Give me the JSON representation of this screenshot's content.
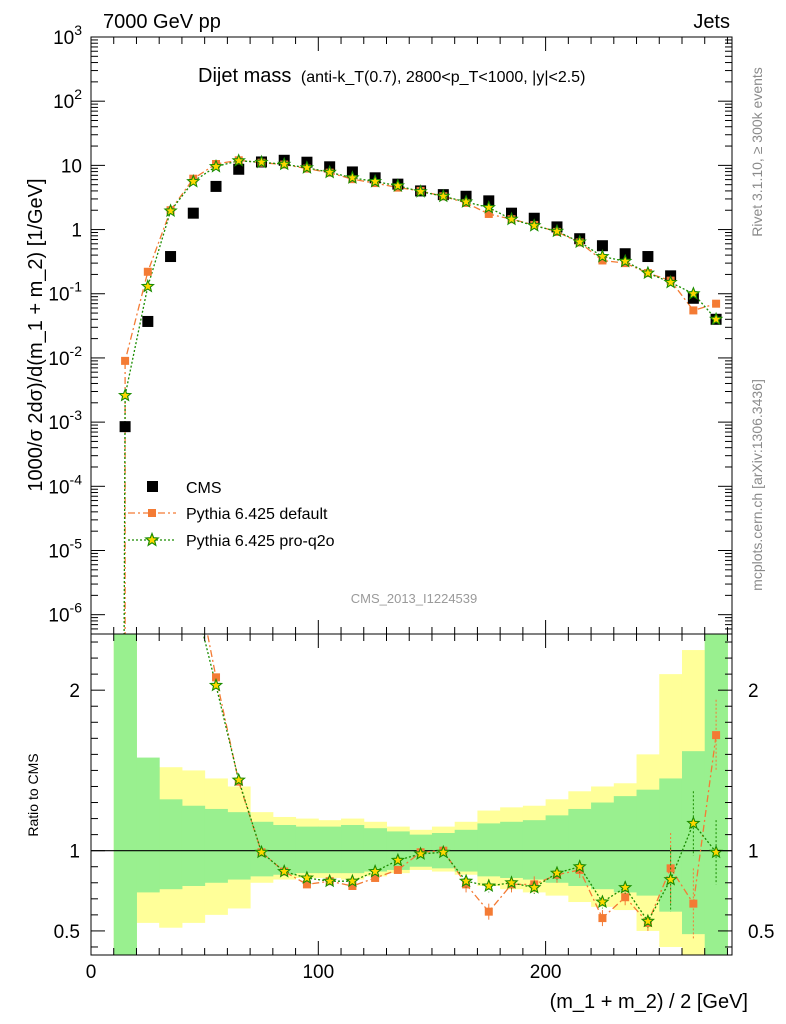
{
  "header": {
    "left_label": "7000 GeV pp",
    "right_label": "Jets"
  },
  "side_labels": {
    "rivet": "Rivet 3.1.10, ≥ 300k events",
    "mcplots": "mcplots.cern.ch [arXiv:1306.3436]"
  },
  "chart_data": {
    "type": "scatter",
    "title_main": "Dijet mass",
    "title_detail": "(anti-k_T(0.7), 2800<p_T<1000, |y|<2.5)",
    "xlabel": "(m_1 + m_2) / 2 [GeV]",
    "ylabel": "1000/σ 2dσ)/d(m_1 + m_2) [1/GeV]",
    "ratio_ylabel": "Ratio to CMS",
    "analysis_tag": "CMS_2013_I1224539",
    "x_range": [
      0,
      282
    ],
    "y_range_log": [
      5e-07,
      1000
    ],
    "ratio_range": [
      0.35,
      2.35
    ],
    "x_ticks": [
      "0",
      "100",
      "200"
    ],
    "y_ticks": [
      "10^-6",
      "10^-5",
      "10^-4",
      "10^-3",
      "10^-2",
      "10^-1",
      "1",
      "10",
      "10^2",
      "10^3"
    ],
    "ratio_ticks": [
      "0.5",
      "1",
      "2"
    ],
    "legend_position": "bottom-left",
    "colors": {
      "cms": "#000000",
      "default": "#f47b34",
      "proq2o": "#1a8c00",
      "band_inner": "#99f08f",
      "band_outer": "#ffff99"
    },
    "x": [
      15,
      25,
      35,
      45,
      55,
      65,
      75,
      85,
      95,
      105,
      115,
      125,
      135,
      145,
      155,
      165,
      175,
      185,
      195,
      205,
      215,
      225,
      235,
      245,
      255,
      265,
      275
    ],
    "series": [
      {
        "name": "CMS",
        "values": [
          0.00085,
          0.037,
          0.38,
          1.8,
          4.7,
          8.7,
          11.3,
          12.0,
          11.2,
          9.5,
          7.9,
          6.4,
          5.1,
          4.0,
          3.5,
          3.3,
          2.8,
          1.8,
          1.5,
          1.1,
          0.72,
          0.56,
          0.42,
          0.38,
          0.19,
          0.085,
          0.04
        ]
      },
      {
        "name": "Pythia 6.425 default",
        "values": [
          0.009,
          0.22,
          2.0,
          6.2,
          10.5,
          12.0,
          11.0,
          10.3,
          8.9,
          7.7,
          6.1,
          5.3,
          4.5,
          4.0,
          3.3,
          2.6,
          1.75,
          1.45,
          1.18,
          0.92,
          0.63,
          0.33,
          0.3,
          0.21,
          0.16,
          0.055,
          0.07
        ]
      },
      {
        "name": "Pythia 6.425 pro-q2o",
        "values": [
          0.0026,
          0.13,
          1.95,
          5.6,
          9.6,
          11.8,
          11.2,
          10.4,
          9.2,
          7.8,
          6.4,
          5.6,
          4.8,
          3.9,
          3.3,
          2.7,
          2.2,
          1.45,
          1.15,
          0.94,
          0.64,
          0.38,
          0.32,
          0.21,
          0.15,
          0.1,
          0.04
        ]
      }
    ],
    "ratio_series": [
      {
        "name": "Pythia 6.425 default",
        "values": [
          null,
          null,
          null,
          2.8,
          2.08,
          1.43,
          0.99,
          0.87,
          0.79,
          0.81,
          0.78,
          0.83,
          0.88,
          0.99,
          1.0,
          0.79,
          0.62,
          0.79,
          0.79,
          0.85,
          0.88,
          0.58,
          0.71,
          0.55,
          0.89,
          0.67,
          1.72
        ]
      },
      {
        "name": "Pythia 6.425 pro-q2o",
        "values": [
          null,
          null,
          null,
          2.6,
          2.03,
          1.44,
          0.99,
          0.87,
          0.83,
          0.81,
          0.81,
          0.87,
          0.94,
          0.98,
          0.99,
          0.81,
          0.78,
          0.8,
          0.77,
          0.86,
          0.9,
          0.68,
          0.77,
          0.56,
          0.82,
          1.17,
          0.99
        ]
      }
    ],
    "band_inner": [
      [
        2.35,
        0.35
      ],
      [
        1.58,
        0.74
      ],
      [
        1.32,
        0.76
      ],
      [
        1.28,
        0.78
      ],
      [
        1.26,
        0.8
      ],
      [
        1.24,
        0.82
      ],
      [
        1.18,
        0.84
      ],
      [
        1.16,
        0.85
      ],
      [
        1.15,
        0.86
      ],
      [
        1.15,
        0.86
      ],
      [
        1.16,
        0.86
      ],
      [
        1.14,
        0.87
      ],
      [
        1.12,
        0.88
      ],
      [
        1.1,
        0.9
      ],
      [
        1.11,
        0.89
      ],
      [
        1.13,
        0.87
      ],
      [
        1.17,
        0.84
      ],
      [
        1.18,
        0.83
      ],
      [
        1.19,
        0.82
      ],
      [
        1.22,
        0.8
      ],
      [
        1.26,
        0.78
      ],
      [
        1.3,
        0.76
      ],
      [
        1.34,
        0.74
      ],
      [
        1.38,
        0.72
      ],
      [
        1.45,
        0.62
      ],
      [
        1.62,
        0.48
      ],
      [
        2.35,
        0.35
      ]
    ],
    "band_outer": [
      [
        2.35,
        0.35
      ],
      [
        1.5,
        0.55
      ],
      [
        1.52,
        0.52
      ],
      [
        1.5,
        0.55
      ],
      [
        1.45,
        0.6
      ],
      [
        1.4,
        0.64
      ],
      [
        1.24,
        0.8
      ],
      [
        1.21,
        0.82
      ],
      [
        1.2,
        0.83
      ],
      [
        1.19,
        0.83
      ],
      [
        1.2,
        0.82
      ],
      [
        1.18,
        0.84
      ],
      [
        1.15,
        0.86
      ],
      [
        1.13,
        0.88
      ],
      [
        1.15,
        0.87
      ],
      [
        1.18,
        0.85
      ],
      [
        1.25,
        0.78
      ],
      [
        1.27,
        0.76
      ],
      [
        1.28,
        0.74
      ],
      [
        1.32,
        0.72
      ],
      [
        1.37,
        0.68
      ],
      [
        1.4,
        0.65
      ],
      [
        1.42,
        0.63
      ],
      [
        1.6,
        0.5
      ],
      [
        2.1,
        0.4
      ],
      [
        2.25,
        0.35
      ],
      [
        2.35,
        0.35
      ]
    ]
  }
}
